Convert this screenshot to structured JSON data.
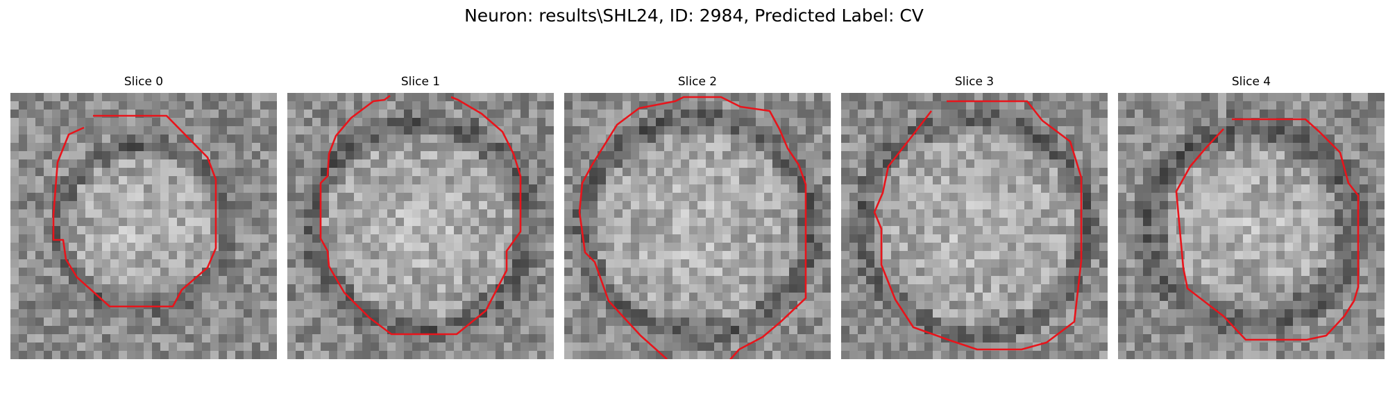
{
  "figure": {
    "title": "Neuron: results\\SHL24, ID: 2984, Predicted Label: CV",
    "contour_color": "#e8141b"
  },
  "slices": [
    {
      "title": "Slice 0",
      "seed": 11,
      "bright_radius": 0.28,
      "dark_ring": 0.08
    },
    {
      "title": "Slice 1",
      "seed": 23,
      "bright_radius": 0.36,
      "dark_ring": 0.1
    },
    {
      "title": "Slice 2",
      "seed": 37,
      "bright_radius": 0.38,
      "dark_ring": 0.1
    },
    {
      "title": "Slice 3",
      "seed": 53,
      "bright_radius": 0.38,
      "dark_ring": 0.09
    },
    {
      "title": "Slice 4",
      "seed": 71,
      "bright_radius": 0.32,
      "dark_ring": 0.13
    }
  ]
}
